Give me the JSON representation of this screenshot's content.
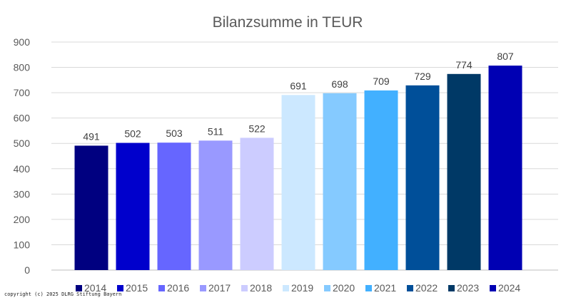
{
  "chart_data": {
    "type": "bar",
    "title": "Bilanzsumme in TEUR",
    "xlabel": "",
    "ylabel": "",
    "ylim": [
      0,
      900
    ],
    "yticks": [
      0,
      100,
      200,
      300,
      400,
      500,
      600,
      700,
      800,
      900
    ],
    "grid": true,
    "legend_position": "bottom",
    "categories": [
      "2014",
      "2015",
      "2016",
      "2017",
      "2018",
      "2019",
      "2020",
      "2021",
      "2022",
      "2023",
      "2024"
    ],
    "values": [
      491,
      502,
      503,
      511,
      522,
      691,
      698,
      709,
      729,
      774,
      807
    ],
    "colors": [
      "#000080",
      "#0000cc",
      "#6666ff",
      "#9999ff",
      "#ccccff",
      "#cce8ff",
      "#85caff",
      "#42b0ff",
      "#004f99",
      "#003966",
      "#0000b3"
    ]
  },
  "watermark": {
    "copyright": "copyright (c) 2025 DLRG Stiftung Bayern"
  }
}
